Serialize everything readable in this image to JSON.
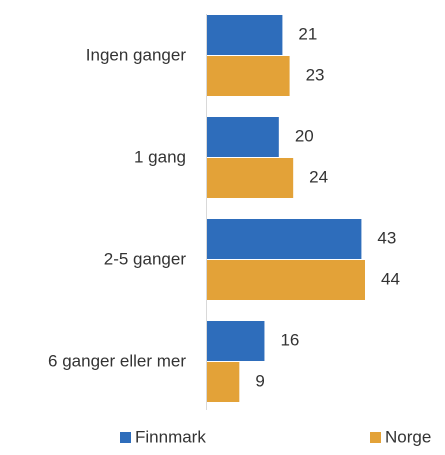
{
  "chart_data": {
    "type": "bar",
    "orientation": "horizontal",
    "categories": [
      "Ingen ganger",
      "1 gang",
      "2-5 ganger",
      "6 ganger eller mer"
    ],
    "series": [
      {
        "name": "Finnmark",
        "color": "#2e6dbb",
        "values": [
          21,
          20,
          43,
          16
        ]
      },
      {
        "name": "Norge",
        "color": "#e3a238",
        "values": [
          23,
          24,
          44,
          9
        ]
      }
    ],
    "legend": "bottom"
  }
}
